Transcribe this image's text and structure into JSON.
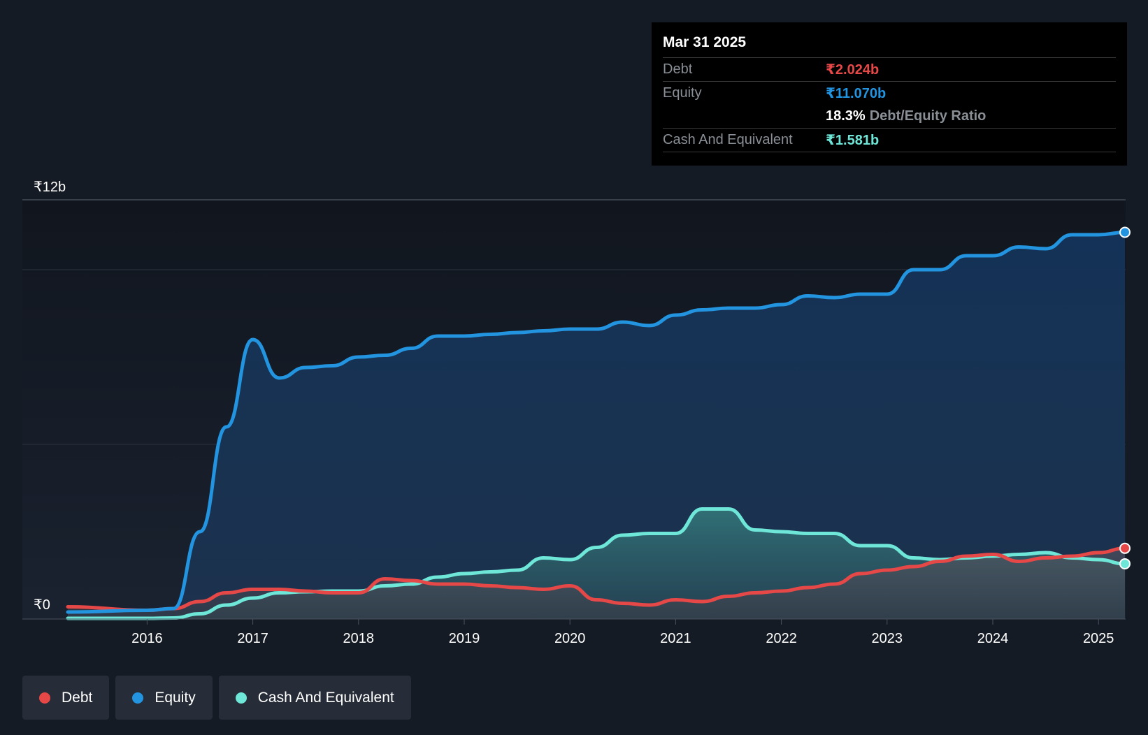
{
  "chart_data": {
    "type": "area",
    "x_unit": "year",
    "y_unit": "₹ billions",
    "ylim": [
      0,
      12
    ],
    "xlim": [
      2015.25,
      2025.25
    ],
    "y_tick_labels": [
      {
        "value": 12,
        "label": "₹12b"
      },
      {
        "value": 0,
        "label": "₹0"
      }
    ],
    "gridlines": [
      12,
      10,
      5
    ],
    "x_ticks": [
      {
        "value": 2016,
        "label": "2016"
      },
      {
        "value": 2017,
        "label": "2017"
      },
      {
        "value": 2018,
        "label": "2018"
      },
      {
        "value": 2019,
        "label": "2019"
      },
      {
        "value": 2020,
        "label": "2020"
      },
      {
        "value": 2021,
        "label": "2021"
      },
      {
        "value": 2022,
        "label": "2022"
      },
      {
        "value": 2023,
        "label": "2023"
      },
      {
        "value": 2024,
        "label": "2024"
      },
      {
        "value": 2025,
        "label": "2025"
      }
    ],
    "series": [
      {
        "name": "Equity",
        "color": "#2394df",
        "x": [
          2015.25,
          2016.0,
          2016.25,
          2016.5,
          2016.75,
          2017.0,
          2017.25,
          2017.5,
          2017.75,
          2018.0,
          2018.25,
          2018.5,
          2018.75,
          2019.0,
          2019.25,
          2019.5,
          2019.75,
          2020.0,
          2020.25,
          2020.5,
          2020.75,
          2021.0,
          2021.25,
          2021.5,
          2021.75,
          2022.0,
          2022.25,
          2022.5,
          2022.75,
          2023.0,
          2023.25,
          2023.5,
          2023.75,
          2024.0,
          2024.25,
          2024.5,
          2024.75,
          2025.0,
          2025.25
        ],
        "values": [
          0.2,
          0.25,
          0.3,
          2.5,
          5.5,
          8.0,
          6.9,
          7.2,
          7.25,
          7.5,
          7.55,
          7.75,
          8.1,
          8.1,
          8.15,
          8.2,
          8.25,
          8.3,
          8.3,
          8.5,
          8.4,
          8.7,
          8.85,
          8.9,
          8.9,
          9.0,
          9.25,
          9.2,
          9.3,
          9.3,
          10.0,
          10.0,
          10.4,
          10.4,
          10.65,
          10.6,
          11.0,
          11.0,
          11.07
        ]
      },
      {
        "name": "Debt",
        "color": "#e64848",
        "x": [
          2015.25,
          2016.0,
          2016.25,
          2016.5,
          2016.75,
          2017.0,
          2017.25,
          2017.5,
          2017.75,
          2018.0,
          2018.25,
          2018.5,
          2018.75,
          2019.0,
          2019.25,
          2019.5,
          2019.75,
          2020.0,
          2020.25,
          2020.5,
          2020.75,
          2021.0,
          2021.25,
          2021.5,
          2021.75,
          2022.0,
          2022.25,
          2022.5,
          2022.75,
          2023.0,
          2023.25,
          2023.5,
          2023.75,
          2024.0,
          2024.25,
          2024.5,
          2024.75,
          2025.0,
          2025.25
        ],
        "values": [
          0.35,
          0.25,
          0.3,
          0.5,
          0.75,
          0.85,
          0.85,
          0.8,
          0.75,
          0.75,
          1.15,
          1.1,
          1.0,
          1.0,
          0.95,
          0.9,
          0.85,
          0.95,
          0.55,
          0.45,
          0.4,
          0.55,
          0.5,
          0.65,
          0.75,
          0.8,
          0.9,
          1.0,
          1.3,
          1.4,
          1.5,
          1.65,
          1.8,
          1.85,
          1.65,
          1.75,
          1.8,
          1.9,
          2.024
        ]
      },
      {
        "name": "Cash And Equivalent",
        "color": "#6ee7d8",
        "x": [
          2015.25,
          2016.0,
          2016.25,
          2016.5,
          2016.75,
          2017.0,
          2017.25,
          2017.5,
          2017.75,
          2018.0,
          2018.25,
          2018.5,
          2018.75,
          2019.0,
          2019.25,
          2019.5,
          2019.75,
          2020.0,
          2020.25,
          2020.5,
          2020.75,
          2021.0,
          2021.25,
          2021.5,
          2021.75,
          2022.0,
          2022.25,
          2022.5,
          2022.75,
          2023.0,
          2023.25,
          2023.5,
          2023.75,
          2024.0,
          2024.25,
          2024.5,
          2024.75,
          2025.0,
          2025.25
        ],
        "values": [
          0.02,
          0.02,
          0.03,
          0.15,
          0.4,
          0.6,
          0.75,
          0.78,
          0.8,
          0.8,
          0.95,
          1.0,
          1.2,
          1.3,
          1.35,
          1.4,
          1.75,
          1.7,
          2.05,
          2.4,
          2.45,
          2.45,
          3.15,
          3.15,
          2.55,
          2.5,
          2.45,
          2.45,
          2.1,
          2.1,
          1.75,
          1.7,
          1.75,
          1.8,
          1.85,
          1.9,
          1.75,
          1.7,
          1.581
        ]
      }
    ]
  },
  "tooltip": {
    "date": "Mar 31 2025",
    "debt_label": "Debt",
    "debt_value": "₹2.024b",
    "equity_label": "Equity",
    "equity_value": "₹11.070b",
    "ratio_value": "18.3%",
    "ratio_label": "Debt/Equity Ratio",
    "cash_label": "Cash And Equivalent",
    "cash_value": "₹1.581b"
  },
  "legend": {
    "debt": {
      "label": "Debt",
      "color": "#e64848"
    },
    "equity": {
      "label": "Equity",
      "color": "#2394df"
    },
    "cash": {
      "label": "Cash And Equivalent",
      "color": "#6ee7d8"
    }
  }
}
